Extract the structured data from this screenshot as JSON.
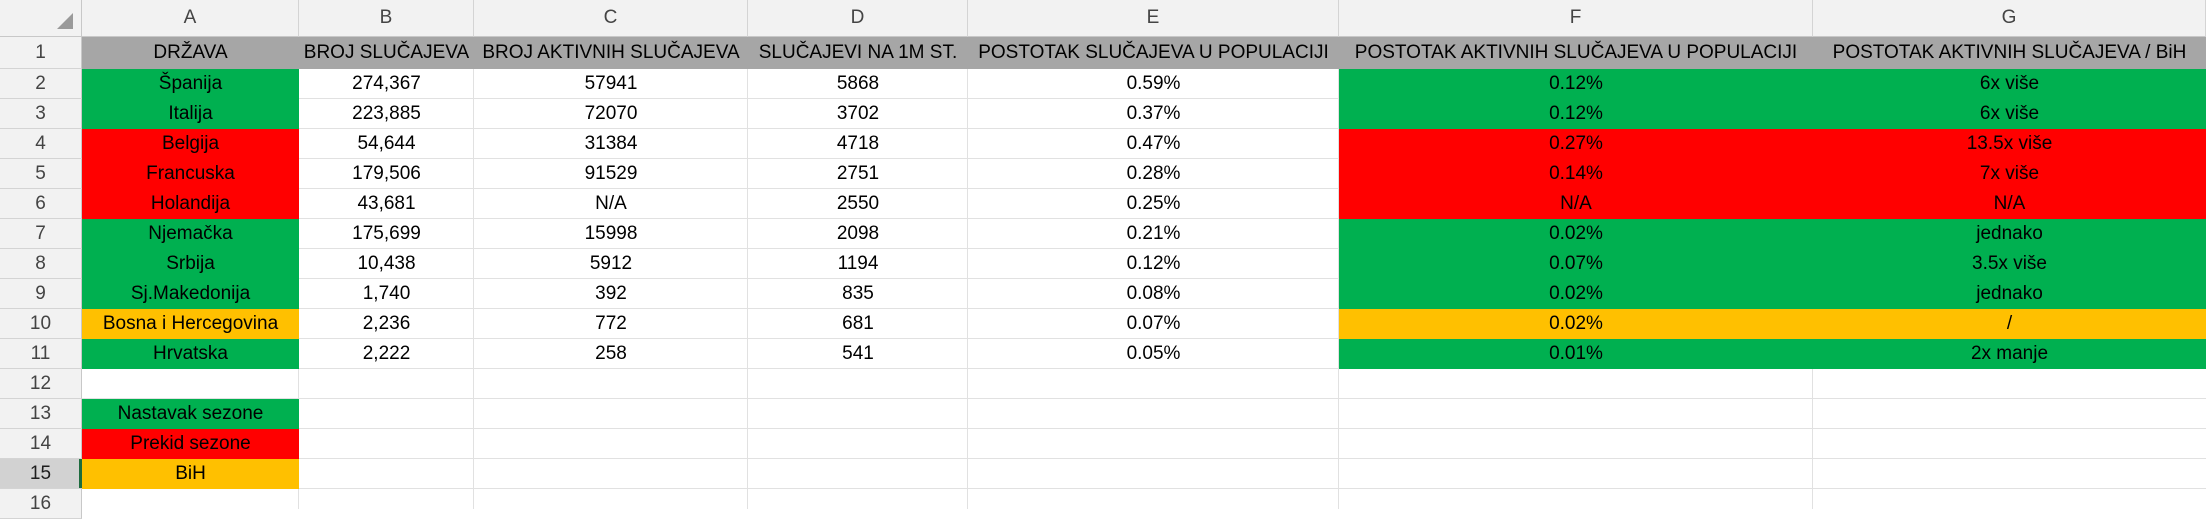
{
  "column_headers": [
    "A",
    "B",
    "C",
    "D",
    "E",
    "F",
    "G"
  ],
  "row_numbers": [
    "1",
    "2",
    "3",
    "4",
    "5",
    "6",
    "7",
    "8",
    "9",
    "10",
    "11",
    "12",
    "13",
    "14",
    "15",
    "16"
  ],
  "colors": {
    "header_fill": "#a6a6a6",
    "green": "#00b050",
    "red": "#ff0000",
    "yellow": "#ffc000",
    "white": "#ffffff"
  },
  "table": {
    "headers": [
      "DRŽAVA",
      "BROJ SLUČAJEVA",
      "BROJ AKTIVNIH SLUČAJEVA",
      "SLUČAJEVI NA 1M ST.",
      "POSTOTAK SLUČAJEVA U POPULACIJI",
      "POSTOTAK AKTIVNIH SLUČAJEVA U POPULACIJI",
      "POSTOTAK AKTIVNIH SLUČAJEVA / BiH"
    ],
    "rows": [
      {
        "status": "green",
        "cells": [
          "Španija",
          "274,367",
          "57941",
          "5868",
          "0.59%",
          "0.12%",
          "6x više"
        ]
      },
      {
        "status": "green",
        "cells": [
          "Italija",
          "223,885",
          "72070",
          "3702",
          "0.37%",
          "0.12%",
          "6x više"
        ]
      },
      {
        "status": "red",
        "cells": [
          "Belgija",
          "54,644",
          "31384",
          "4718",
          "0.47%",
          "0.27%",
          "13.5x više"
        ]
      },
      {
        "status": "red",
        "cells": [
          "Francuska",
          "179,506",
          "91529",
          "2751",
          "0.28%",
          "0.14%",
          "7x više"
        ]
      },
      {
        "status": "red",
        "cells": [
          "Holandija",
          "43,681",
          "N/A",
          "2550",
          "0.25%",
          "N/A",
          "N/A"
        ]
      },
      {
        "status": "green",
        "cells": [
          "Njemačka",
          "175,699",
          "15998",
          "2098",
          "0.21%",
          "0.02%",
          "jednako"
        ]
      },
      {
        "status": "green",
        "cells": [
          "Srbija",
          "10,438",
          "5912",
          "1194",
          "0.12%",
          "0.07%",
          "3.5x više"
        ]
      },
      {
        "status": "green",
        "cells": [
          "Sj.Makedonija",
          "1,740",
          "392",
          "835",
          "0.08%",
          "0.02%",
          "jednako"
        ]
      },
      {
        "status": "yellow",
        "cells": [
          "Bosna i Hercegovina",
          "2,236",
          "772",
          "681",
          "0.07%",
          "0.02%",
          "/"
        ]
      },
      {
        "status": "green",
        "cells": [
          "Hrvatska",
          "2,222",
          "258",
          "541",
          "0.05%",
          "0.01%",
          "2x manje"
        ]
      }
    ]
  },
  "legend": [
    {
      "label": "Nastavak sezone",
      "color": "green"
    },
    {
      "label": "Prekid sezone",
      "color": "red"
    },
    {
      "label": "BiH",
      "color": "yellow"
    }
  ],
  "selected_row": "15"
}
